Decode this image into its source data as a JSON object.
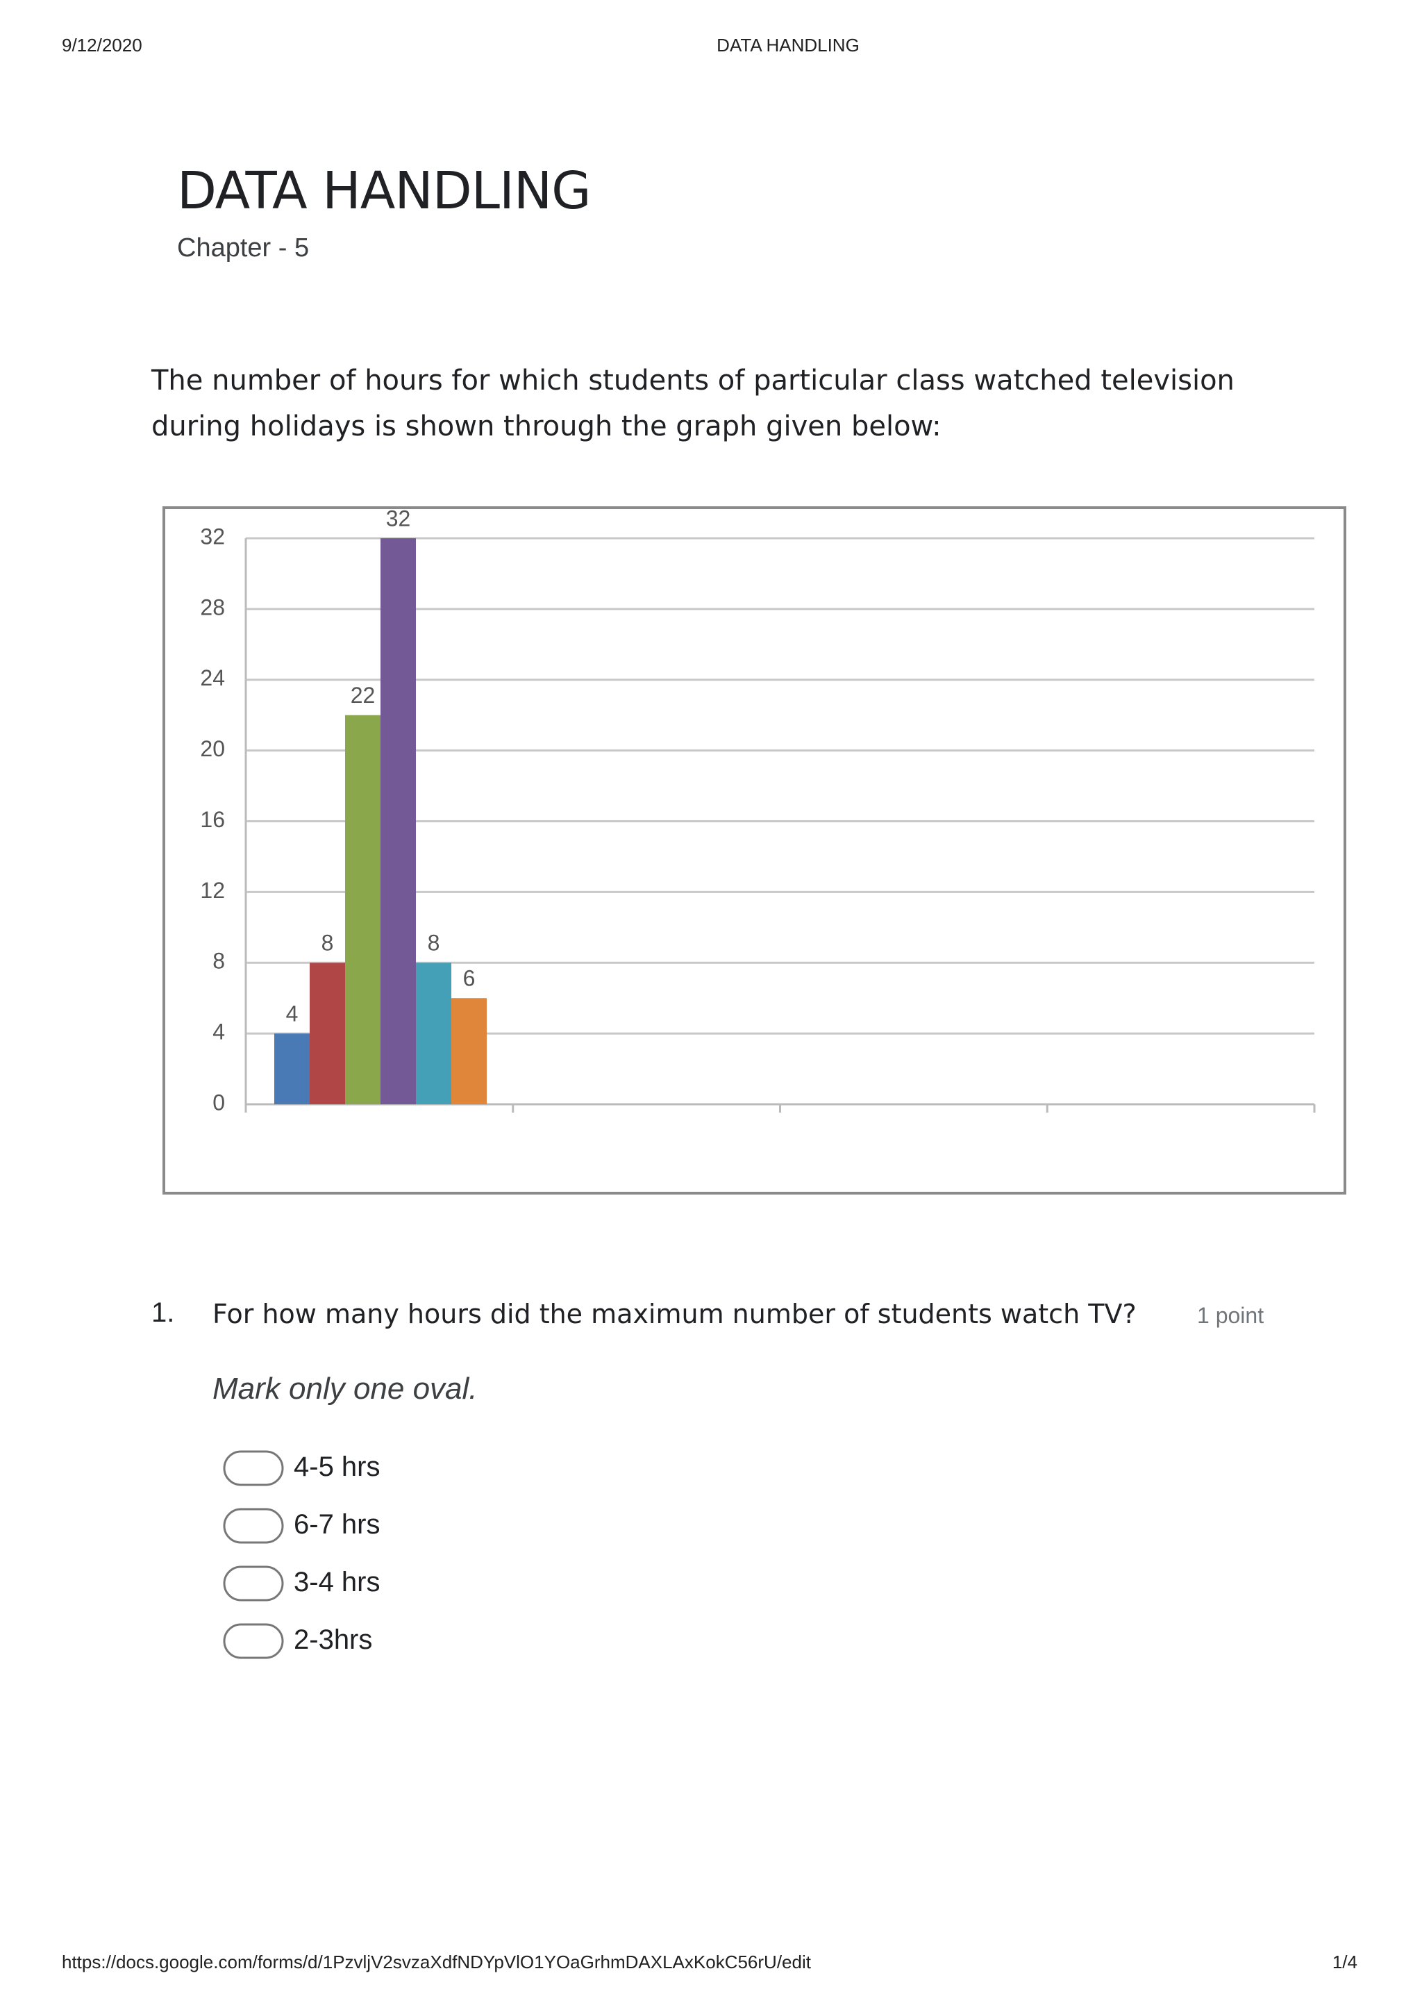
{
  "header": {
    "date": "9/12/2020",
    "page_title": "DATA HANDLING"
  },
  "form": {
    "title": "DATA HANDLING",
    "subtitle": "Chapter - 5",
    "description": "The number of hours for which students of particular class watched television during holidays is shown through the graph given below:"
  },
  "chart_data": {
    "type": "bar",
    "categories": [
      null,
      null,
      null,
      null,
      null,
      null
    ],
    "values": [
      4,
      8,
      22,
      32,
      8,
      6
    ],
    "colors": [
      "#4a7ab5",
      "#b04645",
      "#8aa84b",
      "#735a96",
      "#43a0b6",
      "#e0863a"
    ],
    "ylim": [
      0,
      32
    ],
    "yticks": [
      0,
      4,
      8,
      12,
      16,
      20,
      24,
      28,
      32
    ],
    "grid": true
  },
  "question": {
    "number": "1.",
    "text": "For how many hours did the maximum number of students watch TV?",
    "points": "1 point",
    "hint": "Mark only one oval.",
    "options": [
      "4-5 hrs",
      "6-7 hrs",
      "3-4 hrs",
      "2-3hrs"
    ]
  },
  "footer": {
    "url": "https://docs.google.com/forms/d/1PzvljV2svzaXdfNDYpVlO1YOaGrhmDAXLAxKokC56rU/edit",
    "page": "1/4"
  }
}
